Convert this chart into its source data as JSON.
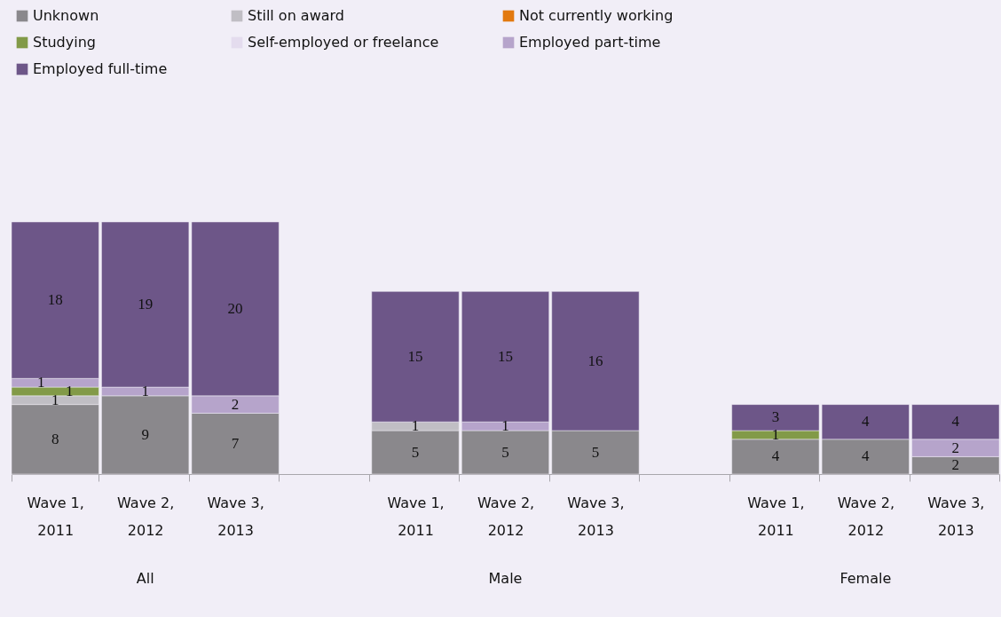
{
  "chart_data": {
    "type": "bar",
    "stacked": true,
    "data_labels": true,
    "legend": "top left",
    "categories": [
      "Wave 1, 2011",
      "Wave 2, 2012",
      "Wave 3, 2013",
      null,
      "Wave 1, 2011",
      "Wave 2, 2012",
      "Wave 3, 2013",
      null,
      "Wave 1, 2011",
      "Wave 2, 2012",
      "Wave 3, 2013"
    ],
    "series": [
      {
        "name": "Unknown",
        "color": "#8a888c",
        "values": [
          8,
          9,
          7,
          null,
          5,
          5,
          5,
          null,
          4,
          4,
          2
        ]
      },
      {
        "name": "Still on award",
        "color": "#c0bec4",
        "values": [
          1,
          null,
          null,
          null,
          1,
          null,
          null,
          null,
          null,
          null,
          null
        ]
      },
      {
        "name": "Not currently working",
        "color": "#e2790f",
        "values": [
          null,
          null,
          null,
          null,
          null,
          null,
          null,
          null,
          null,
          null,
          null
        ]
      },
      {
        "name": "Studying",
        "color": "#829a48",
        "values": [
          1,
          null,
          null,
          null,
          null,
          null,
          null,
          null,
          1,
          null,
          null
        ]
      },
      {
        "name": "Self-employed or freelance",
        "color": "#e4dcee",
        "values": [
          null,
          null,
          null,
          null,
          null,
          null,
          null,
          null,
          null,
          null,
          null
        ]
      },
      {
        "name": "Employed part-time",
        "color": "#b6a4cb",
        "values": [
          1,
          1,
          2,
          null,
          null,
          1,
          null,
          null,
          null,
          null,
          2
        ]
      },
      {
        "name": "Employed full-time",
        "color": "#6d5688",
        "values": [
          18,
          19,
          20,
          null,
          15,
          15,
          16,
          null,
          3,
          4,
          4
        ]
      }
    ],
    "annotations": [
      "All",
      "Male",
      "Female"
    ]
  }
}
